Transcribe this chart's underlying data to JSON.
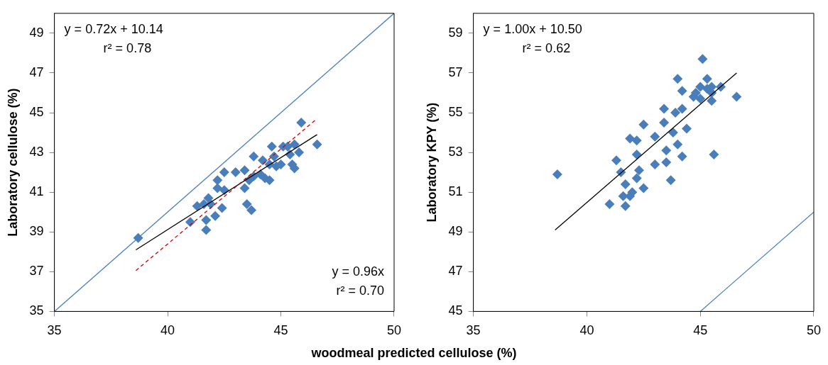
{
  "chart_data": [
    {
      "type": "scatter",
      "xlabel": "woodmeal predicted cellulose (%)",
      "ylabel": "Laboratory cellulose (%)",
      "xlim": [
        35,
        50
      ],
      "xticks": [
        35,
        40,
        45,
        50
      ],
      "ylim": [
        35,
        50
      ],
      "yticks": [
        35,
        37,
        39,
        41,
        43,
        45,
        47,
        49
      ],
      "grid": false,
      "legend": false,
      "marker": "diamond",
      "annotations": [
        "y = 0.72x + 10.14",
        "r² = 0.78",
        "y = 0.96x",
        "r² = 0.70"
      ],
      "series": [
        {
          "type": "line",
          "color": "#4a7ebb",
          "marker": "none",
          "line_style": "solid",
          "x": [
            35,
            50
          ],
          "values": [
            35,
            50
          ]
        },
        {
          "type": "line",
          "color": "#cc0000",
          "marker": "none",
          "line_style": "dashed",
          "x": [
            38.6,
            46.6
          ],
          "values": [
            37.06,
            44.7
          ]
        },
        {
          "type": "line",
          "color": "#000000",
          "marker": "none",
          "line_style": "solid",
          "x": [
            38.6,
            46.6
          ],
          "values": [
            38.1,
            43.9
          ]
        },
        {
          "color": "#4a7ebb",
          "x": [
            38.7,
            41.0,
            41.3,
            41.6,
            41.7,
            41.7,
            41.8,
            41.9,
            42.1,
            42.2,
            42.2,
            42.4,
            42.5,
            42.5,
            43.0,
            43.4,
            43.4,
            43.5,
            43.7,
            43.6,
            43.8,
            43.8,
            44.1,
            44.2,
            44.3,
            44.5,
            44.5,
            44.6,
            44.8,
            45.0,
            45.1,
            45.3,
            45.4,
            45.5,
            45.6,
            45.6,
            45.9,
            46.6,
            45.8,
            44.7
          ],
          "values": [
            38.7,
            39.5,
            40.3,
            40.4,
            39.1,
            39.6,
            40.7,
            40.4,
            39.8,
            41.2,
            41.6,
            40.2,
            42.0,
            41.1,
            42.0,
            42.1,
            41.2,
            40.4,
            40.1,
            41.6,
            41.8,
            42.8,
            41.9,
            42.6,
            41.7,
            42.4,
            41.6,
            43.3,
            42.3,
            42.4,
            43.3,
            43.3,
            42.9,
            42.4,
            42.2,
            43.4,
            44.5,
            43.4,
            43.0,
            42.8
          ]
        }
      ]
    },
    {
      "type": "scatter",
      "ylabel": "Laboratory KPY (%)",
      "xlim": [
        35,
        50
      ],
      "xticks": [
        35,
        40,
        45,
        50
      ],
      "ylim": [
        45,
        60
      ],
      "yticks": [
        45,
        47,
        49,
        51,
        53,
        55,
        57,
        59
      ],
      "grid": false,
      "legend": false,
      "marker": "diamond",
      "annotations": [
        "y = 1.00x + 10.50",
        "r² = 0.62"
      ],
      "series": [
        {
          "type": "line",
          "color": "#4a7ebb",
          "marker": "none",
          "line_style": "solid",
          "x": [
            45,
            50
          ],
          "values": [
            45,
            50
          ]
        },
        {
          "type": "line",
          "color": "#000000",
          "marker": "none",
          "line_style": "solid",
          "x": [
            38.6,
            46.6
          ],
          "values": [
            49.1,
            57.0
          ]
        },
        {
          "color": "#4a7ebb",
          "x": [
            38.7,
            41.3,
            41.5,
            41.0,
            41.7,
            41.6,
            41.9,
            41.7,
            42.0,
            42.2,
            42.5,
            42.3,
            42.2,
            41.9,
            42.2,
            42.5,
            43.0,
            43.0,
            43.5,
            43.5,
            43.7,
            44.0,
            44.2,
            43.8,
            44.4,
            43.4,
            43.4,
            43.9,
            44.2,
            44.0,
            44.2,
            44.7,
            44.8,
            45.0,
            45.0,
            45.1,
            45.3,
            45.3,
            45.5,
            45.5,
            45.5,
            45.9,
            45.6,
            46.6
          ],
          "values": [
            51.9,
            52.6,
            52.0,
            50.4,
            50.3,
            50.8,
            50.8,
            51.4,
            51.0,
            51.7,
            51.2,
            52.1,
            52.9,
            53.7,
            53.6,
            54.4,
            53.8,
            52.4,
            53.1,
            52.5,
            51.6,
            53.4,
            52.8,
            54.0,
            54.2,
            54.5,
            55.2,
            55.0,
            55.2,
            56.7,
            56.1,
            55.8,
            56.0,
            56.3,
            55.7,
            57.7,
            56.7,
            56.2,
            56.3,
            56.0,
            55.6,
            56.3,
            52.9,
            55.8
          ]
        }
      ]
    }
  ]
}
